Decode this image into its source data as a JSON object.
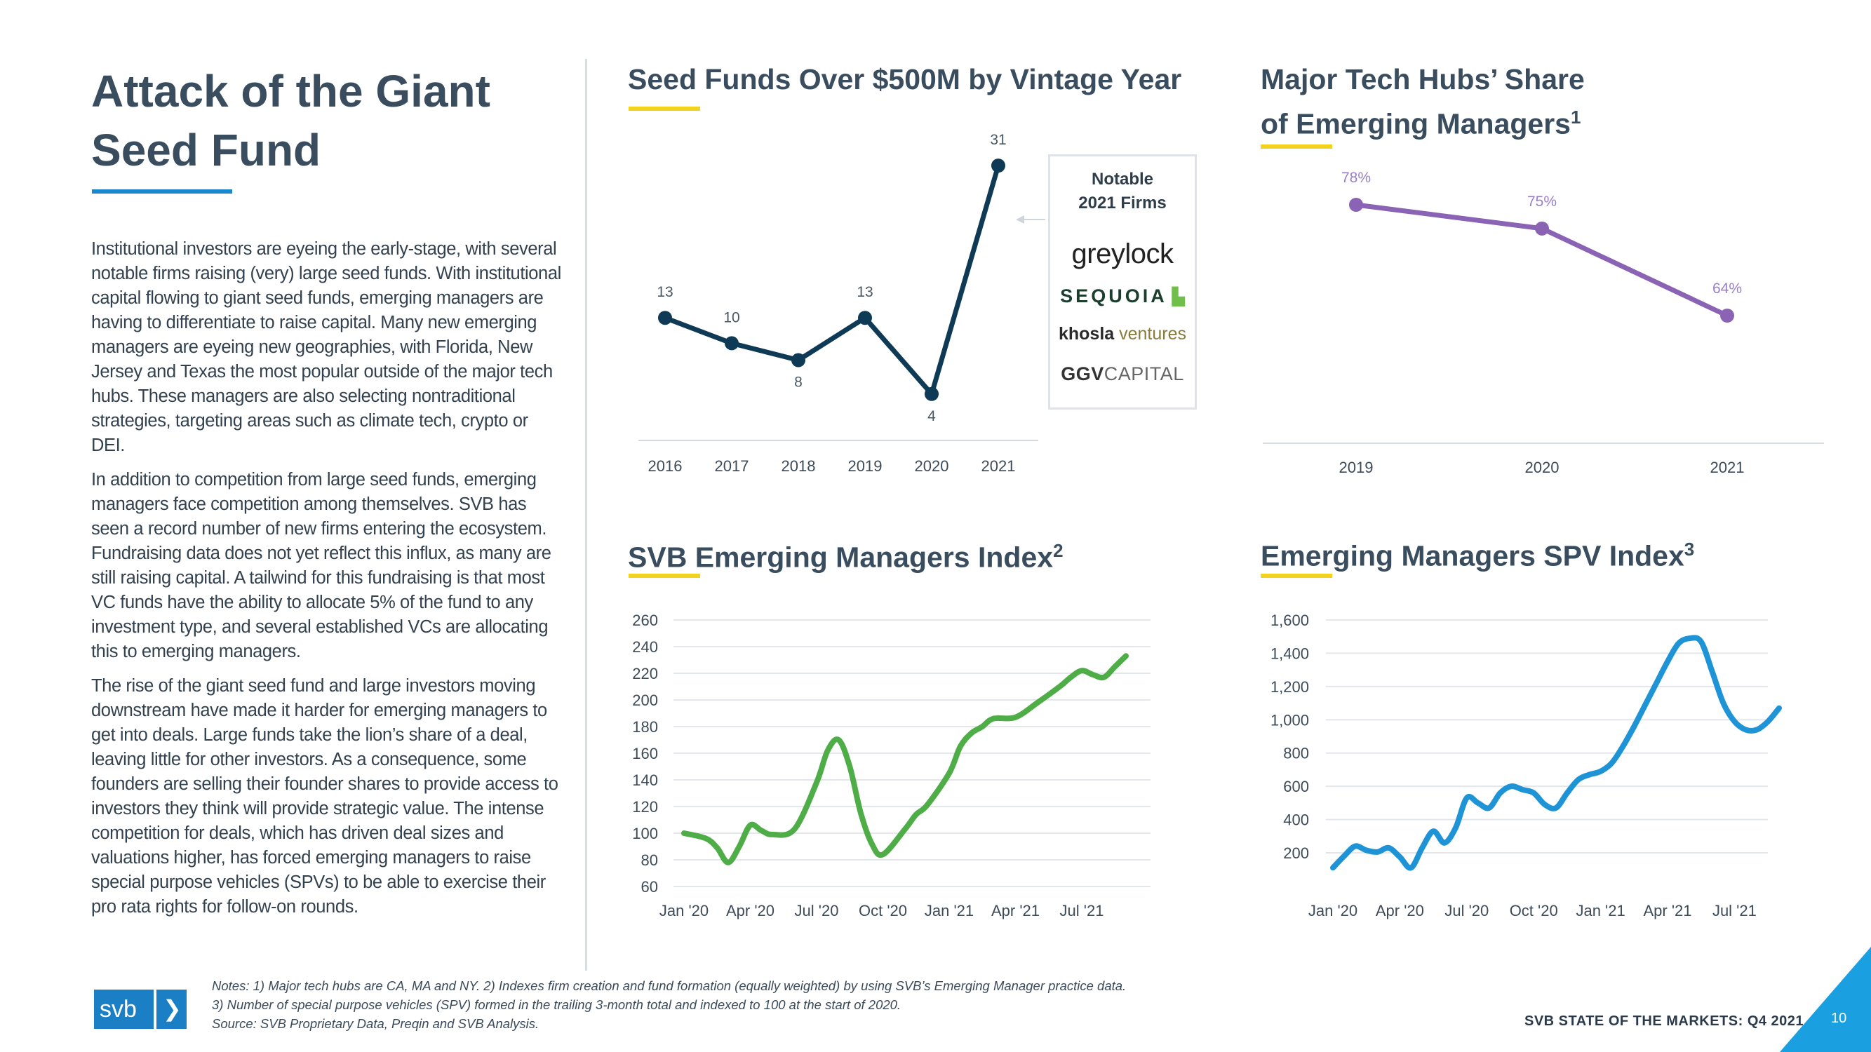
{
  "page": {
    "title_line1": "Attack of the Giant",
    "title_line2": "Seed Fund",
    "paragraphs": [
      "Institutional investors are eyeing the early-stage, with several notable firms raising (very) large seed funds. With institutional capital flowing to giant seed funds, emerging managers are having to differentiate to raise capital. Many new emerging managers are eyeing new geographies, with Florida, New Jersey and Texas the most popular outside of the major tech hubs. These managers are also selecting nontraditional strategies, targeting areas such as climate tech, crypto or DEI.",
      "In addition to competition from large seed funds, emerging managers face competition among themselves. SVB has seen a record number of new firms entering the ecosystem. Fundraising data does not yet reflect this influx, as many are still raising capital. A tailwind for this fundraising is that most VC funds have the ability to allocate 5% of the fund to any investment type, and several established VCs are allocating this to emerging managers.",
      "The rise of the giant seed fund and large investors moving downstream have made it harder for emerging managers to get into deals. Large funds take the lion’s share of a deal, leaving little for other investors. As a consequence, some founders are selling their founder shares to provide access to investors they think will provide strategic value. The intense competition for deals, which has driven deal sizes and valuations higher, has forced emerging managers to raise special purpose vehicles (SPVs) to be able to exercise their pro rata rights for follow-on rounds."
    ],
    "notes_line1": "Notes: 1) Major tech hubs are CA, MA and NY. 2) Indexes firm creation and fund formation (equally weighted) by using SVB’s Emerging Manager practice data.",
    "notes_line2": "3) Number of special purpose vehicles (SPV) formed in the trailing 3-month total and indexed to 100 at the start of 2020.",
    "source": "Source: SVB Proprietary Data, Preqin and SVB Analysis.",
    "brand_footer": "SVB STATE OF THE MARKETS: Q4 2021",
    "page_number": "10",
    "logo_text": "svb",
    "logo_arrow": "❯"
  },
  "notable_box": {
    "title_line1": "Notable",
    "title_line2": "2021 Firms",
    "firms": [
      "greylock",
      "SEQUOIA",
      "khosla",
      "ventures",
      "GGV",
      "CAPITAL"
    ]
  },
  "colors": {
    "title": "#3a4d5f",
    "accent_yellow": "#f2d21c",
    "accent_blue": "#1a87cf",
    "navy_line": "#0f3a55",
    "purple_line": "#8a63b5",
    "green_line": "#4fad48",
    "blue_line": "#1e94d6",
    "triangle": "#1aa0e0"
  },
  "chart_data": [
    {
      "id": "seed_funds",
      "type": "line",
      "title": "Seed Funds Over $500M by Vintage Year",
      "categories": [
        "2016",
        "2017",
        "2018",
        "2019",
        "2020",
        "2021"
      ],
      "values": [
        13,
        10,
        8,
        13,
        4,
        31
      ],
      "labels": [
        "13",
        "10",
        "8",
        "13",
        "4",
        "31"
      ],
      "ylim": [
        0,
        33
      ]
    },
    {
      "id": "tech_hubs",
      "type": "line",
      "title": "Major Tech Hubs’ Share of Emerging Managers",
      "title_line1": "Major Tech Hubs’ Share",
      "title_line2": "of Emerging Managers",
      "footnote_mark": "1",
      "categories": [
        "2019",
        "2020",
        "2021"
      ],
      "values": [
        78,
        75,
        64
      ],
      "labels": [
        "78%",
        "75%",
        "64%"
      ],
      "ylim": [
        58,
        81
      ]
    },
    {
      "id": "emi",
      "type": "line",
      "title": "SVB Emerging Managers Index",
      "footnote_mark": "2",
      "xticks": [
        "Jan '20",
        "Apr '20",
        "Jul '20",
        "Oct '20",
        "Jan '21",
        "Apr '21",
        "Jul '21"
      ],
      "xtick_pos": [
        0,
        3,
        6,
        9,
        12,
        15,
        18
      ],
      "yticks": [
        "260",
        "240",
        "220",
        "200",
        "180",
        "160",
        "140",
        "120",
        "100",
        "80",
        "60"
      ],
      "ylim": [
        60,
        260
      ],
      "x": [
        0,
        1,
        1.5,
        2,
        2.5,
        3,
        3.5,
        4,
        5,
        6,
        6.5,
        7,
        7.5,
        8,
        8.5,
        9,
        10,
        10.5,
        11,
        12,
        12.5,
        13,
        13.5,
        14,
        15,
        16,
        17,
        17.5,
        18,
        18.5,
        19,
        19.5,
        20
      ],
      "values": [
        100,
        96,
        89,
        78,
        90,
        106,
        102,
        99,
        103,
        138,
        162,
        170,
        150,
        115,
        92,
        84,
        103,
        114,
        121,
        145,
        165,
        175,
        180,
        186,
        187,
        198,
        210,
        217,
        222,
        219,
        217,
        225,
        233
      ]
    },
    {
      "id": "spv",
      "type": "line",
      "title": "Emerging Managers SPV Index",
      "footnote_mark": "3",
      "xticks": [
        "Jan '20",
        "Apr '20",
        "Jul '20",
        "Oct '20",
        "Jan '21",
        "Apr '21",
        "Jul '21"
      ],
      "xtick_pos": [
        0,
        3,
        6,
        9,
        12,
        15,
        18
      ],
      "yticks": [
        "1,600",
        "1,400",
        "1,200",
        "1,000",
        "800",
        "600",
        "400",
        "200"
      ],
      "ylim": [
        100,
        1600
      ],
      "x": [
        0,
        0.5,
        1,
        1.5,
        2,
        2.5,
        3,
        3.5,
        4,
        4.5,
        5,
        5.5,
        6,
        6.5,
        7,
        7.5,
        8,
        8.5,
        9,
        9.5,
        10,
        10.5,
        11,
        11.5,
        12,
        12.5,
        13,
        13.5,
        14,
        14.5,
        15,
        15.5,
        16,
        16.5,
        17,
        17.5,
        18,
        18.5,
        19,
        19.5,
        20
      ],
      "values": [
        110,
        180,
        240,
        215,
        205,
        230,
        175,
        110,
        230,
        330,
        260,
        350,
        530,
        500,
        470,
        560,
        600,
        580,
        560,
        490,
        470,
        560,
        640,
        670,
        690,
        740,
        840,
        960,
        1090,
        1220,
        1350,
        1460,
        1490,
        1470,
        1290,
        1100,
        990,
        940,
        940,
        990,
        1070
      ]
    }
  ]
}
